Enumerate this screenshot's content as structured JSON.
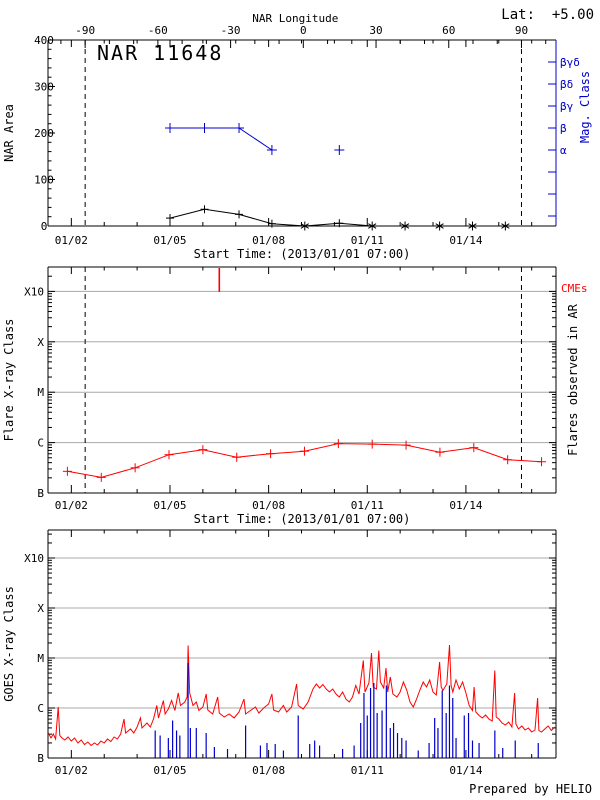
{
  "page": {
    "title": "NAR 11648",
    "lat_label": "Lat:  +5.00",
    "credit": "Prepared by HELIO"
  },
  "colors": {
    "axis": "#000000",
    "red": "#ff0000",
    "blue": "#0000cc",
    "grid": "#a8a8a8",
    "background": "#ffffff"
  },
  "chart_data": [
    {
      "type": "line",
      "title": "NAR 11648",
      "ylabel": "NAR Area",
      "ylim": [
        0,
        400
      ],
      "y_major_ticks": [
        0,
        100,
        200,
        300,
        400
      ],
      "y_minor_step": 20,
      "x_day_range": [
        1.29,
        16.74
      ],
      "x_major_days": [
        2,
        5,
        8,
        11,
        14
      ],
      "x_major_labels": [
        "01/02",
        "01/05",
        "01/08",
        "01/11",
        "01/14"
      ],
      "xlabel": "Start Time: (2013/01/01 07:00)",
      "top_axis": {
        "label": "NAR Longitude",
        "major_deg": [
          -90,
          -60,
          -30,
          0,
          30,
          60,
          90
        ],
        "major_deg_labels": [
          "-90",
          "-60",
          "-30",
          "0",
          "30",
          "60",
          "90"
        ],
        "minor_step_deg": 10,
        "deg_span": [
          -100,
          100
        ],
        "day_at_minus_90": 2.42,
        "day_at_plus_90": 15.69
      },
      "dashed_days": [
        2.42,
        15.69
      ],
      "right_axis": {
        "label": "Mag. Class",
        "tick_labels": [
          "βγδ",
          "βδ",
          "βγ",
          "β",
          "α",
          "",
          "",
          ""
        ]
      },
      "area_series": {
        "name": "NAR area",
        "line": [
          [
            5.0,
            17
          ],
          [
            6.05,
            36
          ],
          [
            7.1,
            25
          ],
          [
            8.1,
            5
          ],
          [
            9.1,
            0
          ],
          [
            10.15,
            6
          ],
          [
            11.15,
            0
          ],
          [
            12.15,
            0
          ],
          [
            13.2,
            0
          ],
          [
            14.2,
            0
          ],
          [
            15.2,
            0
          ]
        ],
        "points_plus": [
          [
            5.0,
            17
          ],
          [
            6.05,
            36
          ],
          [
            7.1,
            25
          ],
          [
            8.1,
            5
          ],
          [
            10.15,
            6
          ]
        ],
        "points_star": [
          [
            9.1,
            0
          ],
          [
            11.15,
            0
          ],
          [
            12.15,
            0
          ],
          [
            13.2,
            0
          ],
          [
            14.2,
            0
          ],
          [
            15.2,
            0
          ]
        ]
      },
      "mag_series": {
        "name": "Magnetic class",
        "line": [
          [
            5.0,
            "β"
          ],
          [
            6.05,
            "β"
          ],
          [
            7.1,
            "β"
          ],
          [
            8.1,
            "α"
          ]
        ],
        "points": [
          [
            10.15,
            "α"
          ]
        ]
      }
    },
    {
      "type": "line",
      "ylabel": "Flare X-ray Class",
      "right_label": "Flares observed in AR",
      "cme_label": "CMEs",
      "y_decade_labels": [
        "B",
        "C",
        "M",
        "X",
        "X10"
      ],
      "x_day_range": [
        1.29,
        16.74
      ],
      "x_major_days": [
        2,
        5,
        8,
        11,
        14
      ],
      "x_major_labels": [
        "01/02",
        "01/05",
        "01/08",
        "01/11",
        "01/14"
      ],
      "xlabel": "Start Time: (2013/01/01 07:00)",
      "dashed_days": [
        2.42,
        15.69
      ],
      "cme_days": [
        6.5
      ],
      "flare_series": {
        "name": "Flare level in AR",
        "days": [
          1.88,
          2.91,
          3.94,
          4.97,
          6.0,
          7.03,
          8.06,
          9.09,
          10.12,
          11.15,
          12.18,
          13.21,
          14.24,
          15.27,
          16.3
        ],
        "levels_above_B": [
          0.43,
          0.31,
          0.5,
          0.76,
          0.86,
          0.71,
          0.78,
          0.83,
          0.98,
          0.97,
          0.95,
          0.81,
          0.9,
          0.66,
          0.62
        ]
      }
    },
    {
      "type": "line",
      "ylabel": "GOES X-ray Class",
      "y_decade_labels": [
        "B",
        "C",
        "M",
        "X",
        "X10"
      ],
      "x_day_range": [
        1.29,
        16.74
      ],
      "x_major_days": [
        2,
        5,
        8,
        11,
        14
      ],
      "x_major_labels": [
        "01/02",
        "01/05",
        "01/08",
        "01/11",
        "01/14"
      ],
      "goes_series": {
        "name": "GOES X-ray flux",
        "points": [
          [
            1.3,
            0.5
          ],
          [
            1.38,
            0.4
          ],
          [
            1.45,
            0.48
          ],
          [
            1.52,
            0.38
          ],
          [
            1.6,
            1.02
          ],
          [
            1.65,
            0.45
          ],
          [
            1.72,
            0.4
          ],
          [
            1.8,
            0.36
          ],
          [
            1.9,
            0.42
          ],
          [
            2.0,
            0.34
          ],
          [
            2.1,
            0.4
          ],
          [
            2.2,
            0.3
          ],
          [
            2.3,
            0.36
          ],
          [
            2.4,
            0.27
          ],
          [
            2.5,
            0.32
          ],
          [
            2.6,
            0.25
          ],
          [
            2.7,
            0.3
          ],
          [
            2.8,
            0.26
          ],
          [
            2.9,
            0.34
          ],
          [
            3.0,
            0.3
          ],
          [
            3.1,
            0.38
          ],
          [
            3.2,
            0.33
          ],
          [
            3.3,
            0.42
          ],
          [
            3.4,
            0.38
          ],
          [
            3.5,
            0.48
          ],
          [
            3.6,
            0.78
          ],
          [
            3.65,
            0.5
          ],
          [
            3.8,
            0.58
          ],
          [
            3.9,
            0.5
          ],
          [
            4.0,
            0.62
          ],
          [
            4.1,
            0.8
          ],
          [
            4.15,
            0.6
          ],
          [
            4.3,
            0.7
          ],
          [
            4.4,
            0.62
          ],
          [
            4.5,
            0.78
          ],
          [
            4.6,
            1.05
          ],
          [
            4.65,
            0.8
          ],
          [
            4.8,
            1.15
          ],
          [
            4.85,
            0.88
          ],
          [
            4.95,
            0.98
          ],
          [
            5.05,
            1.15
          ],
          [
            5.15,
            0.95
          ],
          [
            5.25,
            1.3
          ],
          [
            5.32,
            1.05
          ],
          [
            5.45,
            1.12
          ],
          [
            5.52,
            1.22
          ],
          [
            5.55,
            2.25
          ],
          [
            5.6,
            1.3
          ],
          [
            5.7,
            1.05
          ],
          [
            5.8,
            1.12
          ],
          [
            5.88,
            0.95
          ],
          [
            6.0,
            1.02
          ],
          [
            6.1,
            1.28
          ],
          [
            6.15,
            0.96
          ],
          [
            6.3,
            0.88
          ],
          [
            6.45,
            1.22
          ],
          [
            6.5,
            0.9
          ],
          [
            6.65,
            0.82
          ],
          [
            6.8,
            0.88
          ],
          [
            6.95,
            0.8
          ],
          [
            7.1,
            0.92
          ],
          [
            7.25,
            1.18
          ],
          [
            7.3,
            0.88
          ],
          [
            7.45,
            0.95
          ],
          [
            7.6,
            1.02
          ],
          [
            7.7,
            0.9
          ],
          [
            7.85,
            1.0
          ],
          [
            8.0,
            1.08
          ],
          [
            8.1,
            1.28
          ],
          [
            8.15,
            0.96
          ],
          [
            8.3,
            0.92
          ],
          [
            8.45,
            1.05
          ],
          [
            8.55,
            0.92
          ],
          [
            8.7,
            1.02
          ],
          [
            8.85,
            1.48
          ],
          [
            8.9,
            1.05
          ],
          [
            9.05,
            0.98
          ],
          [
            9.2,
            1.12
          ],
          [
            9.35,
            1.38
          ],
          [
            9.45,
            1.48
          ],
          [
            9.55,
            1.4
          ],
          [
            9.65,
            1.47
          ],
          [
            9.75,
            1.38
          ],
          [
            9.85,
            1.32
          ],
          [
            9.95,
            1.38
          ],
          [
            10.05,
            1.28
          ],
          [
            10.15,
            1.22
          ],
          [
            10.25,
            1.32
          ],
          [
            10.35,
            1.18
          ],
          [
            10.45,
            1.12
          ],
          [
            10.55,
            1.22
          ],
          [
            10.65,
            1.45
          ],
          [
            10.75,
            1.28
          ],
          [
            10.88,
            1.95
          ],
          [
            10.93,
            1.32
          ],
          [
            11.05,
            1.5
          ],
          [
            11.13,
            2.1
          ],
          [
            11.18,
            1.42
          ],
          [
            11.28,
            1.38
          ],
          [
            11.35,
            2.15
          ],
          [
            11.4,
            1.52
          ],
          [
            11.5,
            1.4
          ],
          [
            11.57,
            1.8
          ],
          [
            11.62,
            1.32
          ],
          [
            11.7,
            1.62
          ],
          [
            11.78,
            1.28
          ],
          [
            11.9,
            1.22
          ],
          [
            12.0,
            1.32
          ],
          [
            12.1,
            1.52
          ],
          [
            12.2,
            1.36
          ],
          [
            12.3,
            1.12
          ],
          [
            12.4,
            1.02
          ],
          [
            12.5,
            1.18
          ],
          [
            12.6,
            1.36
          ],
          [
            12.7,
            1.52
          ],
          [
            12.8,
            1.42
          ],
          [
            12.9,
            1.56
          ],
          [
            13.0,
            1.32
          ],
          [
            13.1,
            1.26
          ],
          [
            13.2,
            1.92
          ],
          [
            13.25,
            1.42
          ],
          [
            13.3,
            1.35
          ],
          [
            13.42,
            1.48
          ],
          [
            13.5,
            2.26
          ],
          [
            13.55,
            1.45
          ],
          [
            13.6,
            1.32
          ],
          [
            13.7,
            1.56
          ],
          [
            13.8,
            1.38
          ],
          [
            13.9,
            1.52
          ],
          [
            14.0,
            1.3
          ],
          [
            14.1,
            1.05
          ],
          [
            14.2,
            0.95
          ],
          [
            14.25,
            1.42
          ],
          [
            14.3,
            0.92
          ],
          [
            14.4,
            0.85
          ],
          [
            14.5,
            0.8
          ],
          [
            14.6,
            0.86
          ],
          [
            14.7,
            0.78
          ],
          [
            14.8,
            0.74
          ],
          [
            14.88,
            1.75
          ],
          [
            14.92,
            0.82
          ],
          [
            15.0,
            0.78
          ],
          [
            15.1,
            0.7
          ],
          [
            15.2,
            0.66
          ],
          [
            15.3,
            0.72
          ],
          [
            15.4,
            0.62
          ],
          [
            15.48,
            1.3
          ],
          [
            15.52,
            0.68
          ],
          [
            15.6,
            0.58
          ],
          [
            15.7,
            0.64
          ],
          [
            15.8,
            0.56
          ],
          [
            15.9,
            0.6
          ],
          [
            16.0,
            0.52
          ],
          [
            16.1,
            0.56
          ],
          [
            16.18,
            1.2
          ],
          [
            16.22,
            0.55
          ],
          [
            16.3,
            0.52
          ],
          [
            16.4,
            0.58
          ],
          [
            16.5,
            0.64
          ],
          [
            16.6,
            0.55
          ],
          [
            16.7,
            0.62
          ]
        ]
      },
      "flare_spikes": {
        "name": "AR flare events",
        "points": [
          [
            4.55,
            0.55
          ],
          [
            4.7,
            0.45
          ],
          [
            4.95,
            0.4
          ],
          [
            5.08,
            0.75
          ],
          [
            5.2,
            0.55
          ],
          [
            5.3,
            0.45
          ],
          [
            5.55,
            1.9
          ],
          [
            5.62,
            0.6
          ],
          [
            5.8,
            0.6
          ],
          [
            6.1,
            0.5
          ],
          [
            6.35,
            0.22
          ],
          [
            6.75,
            0.18
          ],
          [
            7.3,
            0.65
          ],
          [
            7.75,
            0.25
          ],
          [
            7.95,
            0.3
          ],
          [
            8.2,
            0.28
          ],
          [
            8.45,
            0.15
          ],
          [
            8.9,
            0.85
          ],
          [
            9.25,
            0.28
          ],
          [
            9.4,
            0.35
          ],
          [
            9.55,
            0.25
          ],
          [
            10.25,
            0.18
          ],
          [
            10.6,
            0.25
          ],
          [
            10.8,
            0.7
          ],
          [
            10.9,
            1.3
          ],
          [
            11.0,
            0.85
          ],
          [
            11.1,
            1.4
          ],
          [
            11.2,
            1.5
          ],
          [
            11.3,
            0.9
          ],
          [
            11.45,
            0.95
          ],
          [
            11.58,
            1.45
          ],
          [
            11.7,
            0.6
          ],
          [
            11.8,
            0.7
          ],
          [
            11.92,
            0.5
          ],
          [
            12.05,
            0.4
          ],
          [
            12.18,
            0.35
          ],
          [
            12.55,
            0.15
          ],
          [
            12.88,
            0.3
          ],
          [
            13.05,
            0.8
          ],
          [
            13.15,
            0.6
          ],
          [
            13.28,
            1.35
          ],
          [
            13.4,
            0.9
          ],
          [
            13.5,
            1.45
          ],
          [
            13.6,
            1.2
          ],
          [
            13.7,
            0.4
          ],
          [
            13.95,
            0.85
          ],
          [
            14.08,
            0.9
          ],
          [
            14.2,
            0.35
          ],
          [
            14.4,
            0.3
          ],
          [
            14.88,
            0.55
          ],
          [
            15.12,
            0.2
          ],
          [
            15.5,
            0.35
          ],
          [
            16.2,
            0.3
          ]
        ]
      }
    }
  ]
}
